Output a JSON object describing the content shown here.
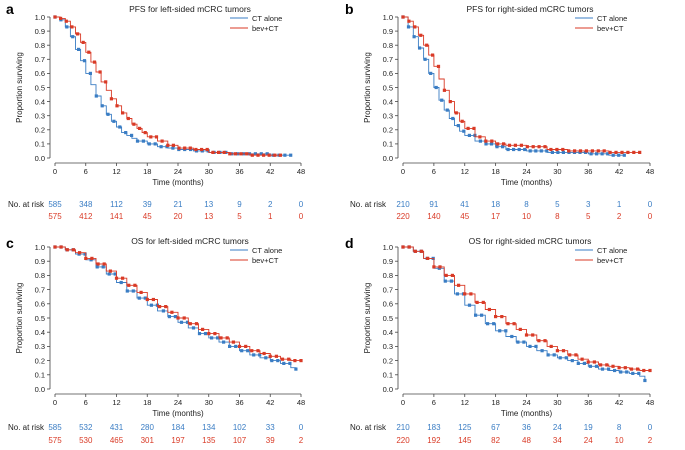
{
  "colors": {
    "ct_alone": "#3a7dc4",
    "bev_ct": "#d93a26",
    "axis": "#444444",
    "text": "#222222"
  },
  "chart_data": [
    {
      "panel_letter": "a",
      "type": "line",
      "chart_kind": "kaplan-meier",
      "title": "PFS for left-sided mCRC tumors",
      "xlabel": "Time (months)",
      "ylabel": "Proportion surviving",
      "xlim": [
        0,
        48
      ],
      "ylim": [
        0,
        1
      ],
      "x_ticks": [
        "0",
        "6",
        "12",
        "18",
        "24",
        "30",
        "36",
        "42",
        "48"
      ],
      "y_ticks": [
        "0.0",
        "0.1",
        "0.2",
        "0.3",
        "0.4",
        "0.5",
        "0.6",
        "0.7",
        "0.8",
        "0.9",
        "1.0"
      ],
      "legend": [
        "CT alone",
        "bev+CT"
      ],
      "legend_position": "top-right",
      "risk_label": "No. at risk",
      "risk_ct": [
        "585",
        "348",
        "112",
        "39",
        "21",
        "13",
        "9",
        "2",
        "0"
      ],
      "risk_bev": [
        "575",
        "412",
        "141",
        "45",
        "20",
        "13",
        "5",
        "1",
        "0"
      ],
      "series": [
        {
          "name": "CT alone",
          "x": [
            0,
            1,
            2,
            3,
            4,
            5,
            6,
            7,
            8,
            9,
            10,
            11,
            12,
            13,
            14,
            15,
            16,
            18,
            20,
            22,
            24,
            27,
            30,
            34,
            38,
            42,
            46
          ],
          "values": [
            1.0,
            0.98,
            0.93,
            0.86,
            0.77,
            0.69,
            0.6,
            0.52,
            0.44,
            0.37,
            0.31,
            0.26,
            0.22,
            0.18,
            0.16,
            0.14,
            0.12,
            0.1,
            0.08,
            0.07,
            0.06,
            0.05,
            0.04,
            0.03,
            0.03,
            0.02,
            0.02
          ]
        },
        {
          "name": "bev+CT",
          "x": [
            0,
            1,
            2,
            3,
            4,
            5,
            6,
            7,
            8,
            9,
            10,
            11,
            12,
            13,
            14,
            15,
            16,
            17,
            18,
            20,
            22,
            24,
            27,
            30,
            34,
            38,
            42,
            44
          ],
          "values": [
            1.0,
            0.99,
            0.97,
            0.93,
            0.88,
            0.82,
            0.75,
            0.68,
            0.61,
            0.54,
            0.48,
            0.42,
            0.37,
            0.32,
            0.28,
            0.24,
            0.21,
            0.18,
            0.15,
            0.12,
            0.09,
            0.07,
            0.06,
            0.04,
            0.03,
            0.02,
            0.02,
            0.02
          ]
        }
      ]
    },
    {
      "panel_letter": "b",
      "type": "line",
      "chart_kind": "kaplan-meier",
      "title": "PFS for right-sided mCRC tumors",
      "xlabel": "Time (months)",
      "ylabel": "Proportion surviving",
      "xlim": [
        0,
        48
      ],
      "ylim": [
        0,
        1
      ],
      "x_ticks": [
        "0",
        "6",
        "12",
        "18",
        "24",
        "30",
        "36",
        "42",
        "48"
      ],
      "y_ticks": [
        "0.0",
        "0.1",
        "0.2",
        "0.3",
        "0.4",
        "0.5",
        "0.6",
        "0.7",
        "0.8",
        "0.9",
        "1.0"
      ],
      "legend": [
        "CT alone",
        "bev+CT"
      ],
      "legend_position": "top-right",
      "risk_label": "No. at risk",
      "risk_ct": [
        "210",
        "91",
        "41",
        "18",
        "8",
        "5",
        "3",
        "1",
        "0"
      ],
      "risk_bev": [
        "220",
        "140",
        "45",
        "17",
        "10",
        "8",
        "5",
        "2",
        "0"
      ],
      "series": [
        {
          "name": "CT alone",
          "x": [
            0,
            1,
            2,
            3,
            4,
            5,
            6,
            7,
            8,
            9,
            10,
            11,
            12,
            14,
            16,
            18,
            20,
            24,
            28,
            32,
            36,
            40,
            43
          ],
          "values": [
            1.0,
            0.93,
            0.86,
            0.78,
            0.7,
            0.6,
            0.5,
            0.41,
            0.34,
            0.28,
            0.23,
            0.19,
            0.16,
            0.12,
            0.1,
            0.08,
            0.06,
            0.05,
            0.04,
            0.04,
            0.03,
            0.02,
            0.02
          ]
        },
        {
          "name": "bev+CT",
          "x": [
            0,
            1,
            2,
            3,
            4,
            5,
            6,
            7,
            8,
            9,
            10,
            11,
            12,
            14,
            16,
            18,
            20,
            24,
            28,
            32,
            36,
            40,
            46
          ],
          "values": [
            1.0,
            0.97,
            0.93,
            0.87,
            0.8,
            0.73,
            0.65,
            0.56,
            0.48,
            0.4,
            0.32,
            0.26,
            0.21,
            0.15,
            0.12,
            0.1,
            0.09,
            0.08,
            0.06,
            0.05,
            0.05,
            0.04,
            0.04
          ]
        }
      ]
    },
    {
      "panel_letter": "c",
      "type": "line",
      "chart_kind": "kaplan-meier",
      "title": "OS for left-sided mCRC tumors",
      "xlabel": "Time (months)",
      "ylabel": "Proportion surviving",
      "xlim": [
        0,
        48
      ],
      "ylim": [
        0,
        1
      ],
      "x_ticks": [
        "0",
        "6",
        "12",
        "18",
        "24",
        "30",
        "36",
        "42",
        "48"
      ],
      "y_ticks": [
        "0.0",
        "0.1",
        "0.2",
        "0.3",
        "0.4",
        "0.5",
        "0.6",
        "0.7",
        "0.8",
        "0.9",
        "1.0"
      ],
      "legend": [
        "CT alone",
        "bev+CT"
      ],
      "legend_position": "top-right",
      "risk_label": "No. at risk",
      "risk_ct": [
        "585",
        "532",
        "431",
        "280",
        "184",
        "134",
        "102",
        "33",
        "0"
      ],
      "risk_bev": [
        "575",
        "530",
        "465",
        "301",
        "197",
        "135",
        "107",
        "39",
        "2"
      ],
      "series": [
        {
          "name": "CT alone",
          "x": [
            0,
            2,
            4,
            6,
            8,
            10,
            12,
            14,
            16,
            18,
            20,
            22,
            24,
            26,
            28,
            30,
            32,
            34,
            36,
            38,
            40,
            42,
            44,
            46,
            47
          ],
          "values": [
            1.0,
            0.98,
            0.95,
            0.91,
            0.86,
            0.81,
            0.75,
            0.69,
            0.64,
            0.59,
            0.55,
            0.51,
            0.47,
            0.43,
            0.39,
            0.36,
            0.33,
            0.3,
            0.27,
            0.24,
            0.22,
            0.2,
            0.18,
            0.15,
            0.14
          ]
        },
        {
          "name": "bev+CT",
          "x": [
            0,
            2,
            4,
            6,
            8,
            10,
            12,
            14,
            16,
            18,
            20,
            22,
            24,
            26,
            28,
            30,
            32,
            34,
            36,
            38,
            40,
            42,
            44,
            46,
            48
          ],
          "values": [
            1.0,
            0.98,
            0.96,
            0.92,
            0.88,
            0.83,
            0.78,
            0.73,
            0.68,
            0.63,
            0.58,
            0.54,
            0.5,
            0.46,
            0.42,
            0.39,
            0.36,
            0.33,
            0.3,
            0.27,
            0.25,
            0.23,
            0.21,
            0.2,
            0.2
          ]
        }
      ]
    },
    {
      "panel_letter": "d",
      "type": "line",
      "chart_kind": "kaplan-meier",
      "title": "OS for right-sided mCRC tumors",
      "xlabel": "Time (months)",
      "ylabel": "Proportion surviving",
      "xlim": [
        0,
        48
      ],
      "ylim": [
        0,
        1
      ],
      "x_ticks": [
        "0",
        "6",
        "12",
        "18",
        "24",
        "30",
        "36",
        "42",
        "48"
      ],
      "y_ticks": [
        "0.0",
        "0.1",
        "0.2",
        "0.3",
        "0.4",
        "0.5",
        "0.6",
        "0.7",
        "0.8",
        "0.9",
        "1.0"
      ],
      "legend": [
        "CT alone",
        "bev+CT"
      ],
      "legend_position": "top-right",
      "risk_label": "No. at risk",
      "risk_ct": [
        "210",
        "183",
        "125",
        "67",
        "36",
        "24",
        "19",
        "8",
        "0"
      ],
      "risk_bev": [
        "220",
        "192",
        "145",
        "82",
        "48",
        "34",
        "24",
        "10",
        "2"
      ],
      "series": [
        {
          "name": "CT alone",
          "x": [
            0,
            2,
            4,
            6,
            8,
            10,
            12,
            14,
            16,
            18,
            20,
            22,
            24,
            26,
            28,
            30,
            32,
            34,
            36,
            38,
            40,
            42,
            44,
            46,
            47
          ],
          "values": [
            1.0,
            0.97,
            0.92,
            0.85,
            0.76,
            0.67,
            0.59,
            0.52,
            0.46,
            0.41,
            0.37,
            0.33,
            0.3,
            0.27,
            0.24,
            0.22,
            0.2,
            0.18,
            0.16,
            0.14,
            0.13,
            0.12,
            0.11,
            0.09,
            0.06
          ]
        },
        {
          "name": "bev+CT",
          "x": [
            0,
            2,
            4,
            6,
            8,
            10,
            12,
            14,
            16,
            18,
            20,
            22,
            24,
            26,
            28,
            30,
            32,
            34,
            36,
            38,
            40,
            42,
            44,
            46,
            48
          ],
          "values": [
            1.0,
            0.97,
            0.92,
            0.86,
            0.8,
            0.73,
            0.67,
            0.61,
            0.56,
            0.51,
            0.46,
            0.42,
            0.38,
            0.34,
            0.3,
            0.27,
            0.24,
            0.21,
            0.19,
            0.17,
            0.16,
            0.15,
            0.14,
            0.13,
            0.13
          ]
        }
      ]
    }
  ]
}
